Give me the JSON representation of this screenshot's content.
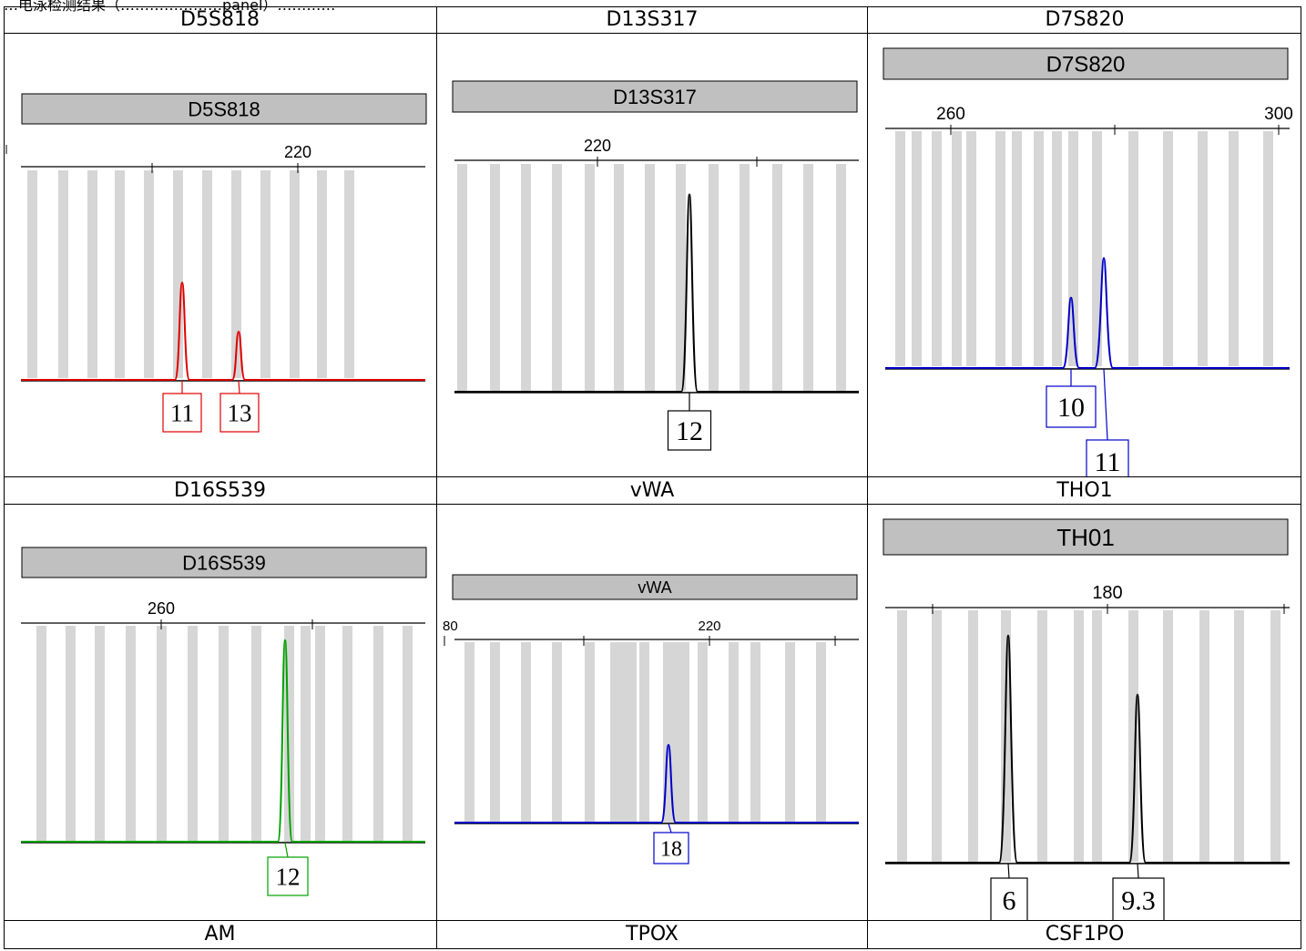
{
  "caption": "…电泳检测结果（…………………panel）…………",
  "grid": {
    "rows": [
      [
        "D5S818",
        "D13S317",
        "D7S820"
      ],
      [
        "D16S539",
        "vWA",
        "THO1"
      ],
      [
        "AM",
        "TPOX",
        "CSF1PO"
      ]
    ]
  },
  "chart_data": [
    {
      "type": "electropherogram",
      "title": "D5S818",
      "tick_labels": [
        "220"
      ],
      "peaks": [
        {
          "allele": "11",
          "height": 0.14
        },
        {
          "allele": "13",
          "height": 0.07
        }
      ],
      "color": "#e00000"
    },
    {
      "type": "electropherogram",
      "title": "D13S317",
      "tick_labels": [
        "220"
      ],
      "peaks": [
        {
          "allele": "12",
          "height": 0.26
        }
      ],
      "color": "#000000"
    },
    {
      "type": "electropherogram",
      "title": "D7S820",
      "tick_labels": [
        "260",
        "300"
      ],
      "peaks": [
        {
          "allele": "10",
          "height": 0.09
        },
        {
          "allele": "11",
          "height": 0.14
        }
      ],
      "color": "#0000c8"
    },
    {
      "type": "electropherogram",
      "title": "D16S539",
      "tick_labels": [
        "260"
      ],
      "peaks": [
        {
          "allele": "12",
          "height": 0.28
        }
      ],
      "color": "#00a000"
    },
    {
      "type": "electropherogram",
      "title": "vWA",
      "tick_labels": [
        "80",
        "220"
      ],
      "peaks": [
        {
          "allele": "18",
          "height": 0.13
        }
      ],
      "color": "#0000c8"
    },
    {
      "type": "electropherogram",
      "title": "TH01",
      "tick_labels": [
        "180"
      ],
      "peaks": [
        {
          "allele": "6",
          "height": 0.27
        },
        {
          "allele": "9.3",
          "height": 0.2
        }
      ],
      "color": "#000000"
    }
  ]
}
